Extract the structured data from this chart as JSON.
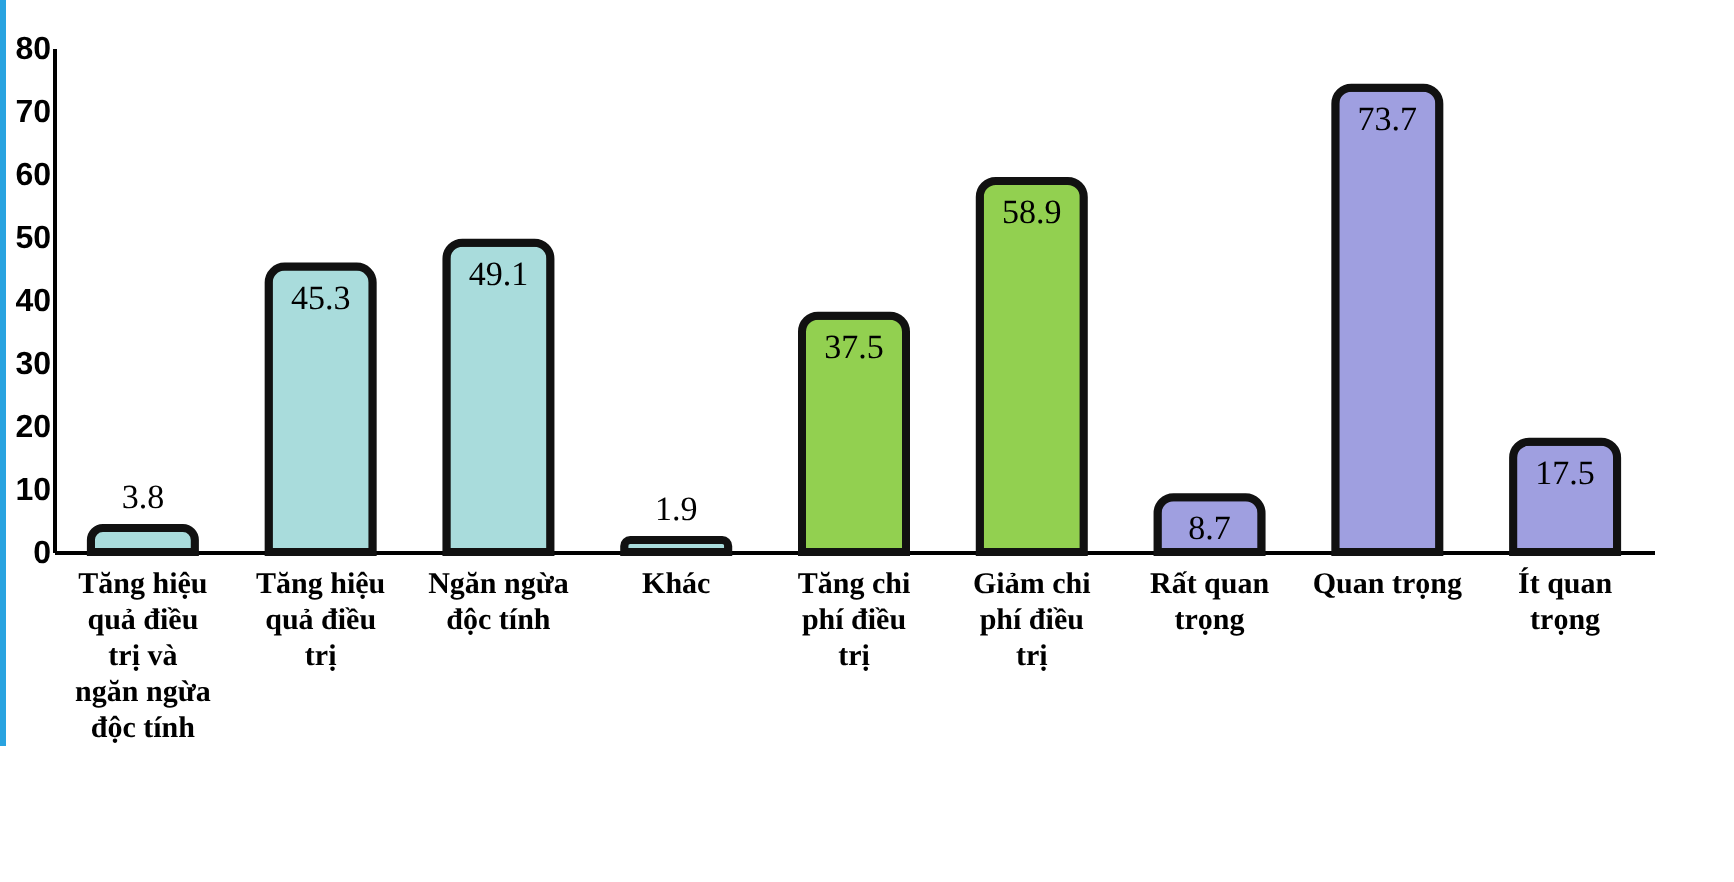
{
  "chart_data": {
    "type": "bar",
    "categories": [
      "Tăng hiệu quả điều trị và ngăn ngừa độc tính",
      "Tăng hiệu quả điều trị",
      "Ngăn ngừa độc tính",
      "Khác",
      "Tăng chi phí điều trị",
      "Giảm chi phí điều trị",
      "Rất quan trọng",
      "Quan trọng",
      "Ít quan trọng"
    ],
    "values": [
      3.8,
      45.3,
      49.1,
      1.9,
      37.5,
      58.9,
      8.7,
      73.7,
      17.5
    ],
    "colors": [
      "#a9dcdc",
      "#a9dcdc",
      "#a9dcdc",
      "#a9dcdc",
      "#92d050",
      "#92d050",
      "#9f9fe0",
      "#9f9fe0",
      "#9f9fe0"
    ],
    "value_labels": [
      "3.8",
      "45.3",
      "49.1",
      "1.9",
      "37.5",
      "58.9",
      "8.7",
      "73.7",
      "17.5"
    ],
    "ylim": [
      0,
      80
    ],
    "yticks": [
      0,
      10,
      20,
      30,
      40,
      50,
      60,
      70,
      80
    ],
    "grid": false
  }
}
